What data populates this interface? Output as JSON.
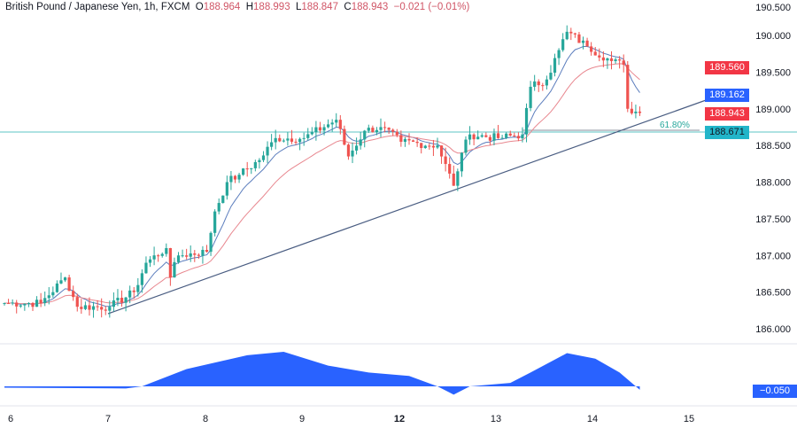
{
  "legend": {
    "symbol": "British Pound / Japanese Yen, 1h, FXCM",
    "o_label": "O",
    "open": "188.964",
    "h_label": "H",
    "high": "188.993",
    "l_label": "L",
    "low": "188.847",
    "c_label": "C",
    "close": "188.943",
    "change": "−0.021 (−0.01%)"
  },
  "price_labels": {
    "slow_ma": "189.560",
    "fast_ma": "189.162",
    "last": "188.943",
    "fib": "188.671",
    "osc": "−0.050"
  },
  "fib_label": "61.80%",
  "colors": {
    "up": "#26a69a",
    "down": "#ef5350",
    "fast_ma": "#5b7dbd",
    "slow_ma": "#e8878f",
    "fib": "#5ec4c4",
    "trend": "#4a5d82",
    "osc": "#2962ff"
  },
  "chart_data": {
    "type": "candlestick",
    "y_ticks": [
      "190.500",
      "190.000",
      "189.500",
      "189.000",
      "188.500",
      "188.000",
      "187.500",
      "187.000",
      "186.500",
      "186.000"
    ],
    "x_ticks": [
      "6",
      "7",
      "8",
      "9",
      "12",
      "13",
      "14",
      "15"
    ],
    "ylim": [
      185.8,
      190.5
    ],
    "close_path": [
      [
        0,
        186.35
      ],
      [
        9,
        186.35
      ],
      [
        15,
        186.7
      ],
      [
        18,
        186.3
      ],
      [
        26,
        186.3
      ],
      [
        32,
        186.5
      ],
      [
        35,
        186.9
      ],
      [
        40,
        187.1
      ],
      [
        41,
        186.7
      ],
      [
        43,
        187.0
      ],
      [
        50,
        187.05
      ],
      [
        52,
        187.6
      ],
      [
        55,
        188.0
      ],
      [
        58,
        188.1
      ],
      [
        63,
        188.3
      ],
      [
        67,
        188.6
      ],
      [
        74,
        188.6
      ],
      [
        82,
        188.85
      ],
      [
        85,
        188.35
      ],
      [
        89,
        188.7
      ],
      [
        93,
        188.75
      ],
      [
        98,
        188.55
      ],
      [
        107,
        188.5
      ],
      [
        111,
        187.95
      ],
      [
        113,
        188.4
      ],
      [
        115,
        188.65
      ],
      [
        122,
        188.6
      ],
      [
        128,
        188.65
      ],
      [
        130,
        189.3
      ],
      [
        134,
        189.4
      ],
      [
        137,
        189.8
      ],
      [
        139,
        190.05
      ],
      [
        144,
        189.85
      ],
      [
        150,
        189.65
      ],
      [
        153,
        189.6
      ],
      [
        154,
        189.0
      ],
      [
        157,
        188.943
      ]
    ],
    "oscillator": [
      [
        0,
        -0.02
      ],
      [
        30,
        -0.03
      ],
      [
        34,
        0.0
      ],
      [
        45,
        0.25
      ],
      [
        60,
        0.45
      ],
      [
        69,
        0.5
      ],
      [
        80,
        0.3
      ],
      [
        90,
        0.2
      ],
      [
        100,
        0.15
      ],
      [
        107,
        0.0
      ],
      [
        111,
        -0.12
      ],
      [
        115,
        0.0
      ],
      [
        125,
        0.05
      ],
      [
        130,
        0.2
      ],
      [
        139,
        0.48
      ],
      [
        146,
        0.4
      ],
      [
        152,
        0.2
      ],
      [
        157,
        -0.05
      ]
    ]
  }
}
